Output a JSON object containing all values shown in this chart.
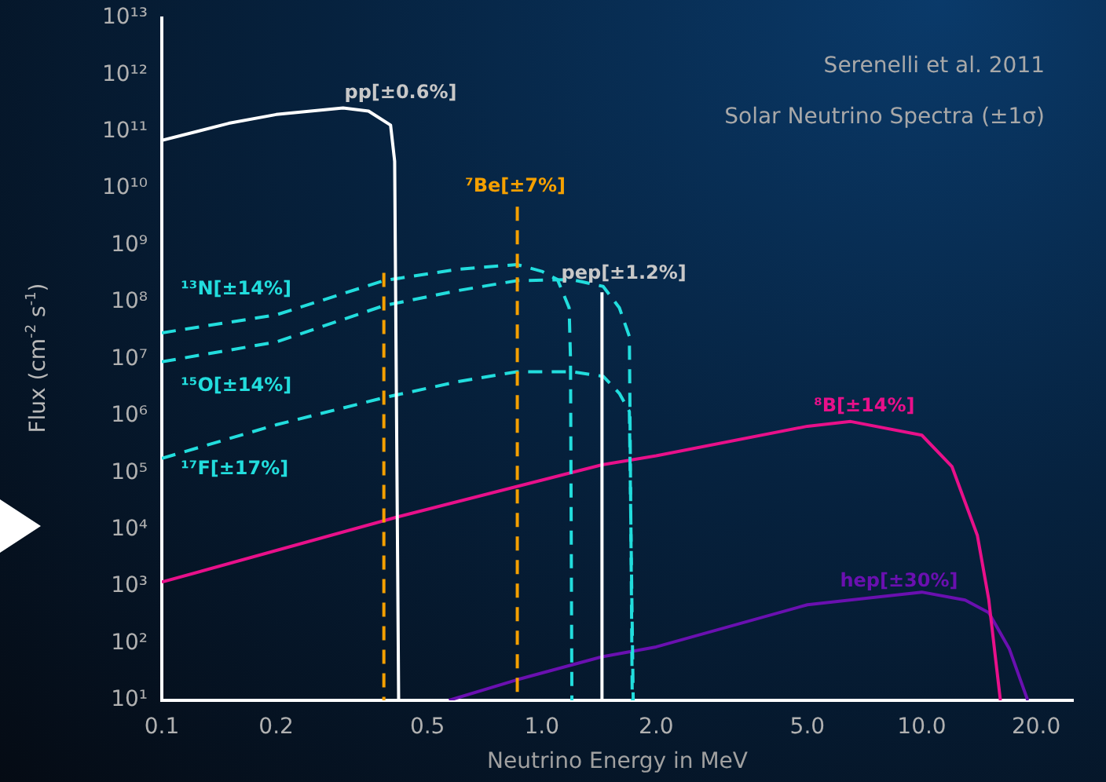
{
  "chart_data": {
    "type": "line",
    "title": "Serenelli et al. 2011",
    "subtitle": "Solar Neutrino Spectra (±1σ)",
    "xlabel": "Neutrino Energy in MeV",
    "ylabel": "Flux (cm$^{-2}$ s$^{-1}$)",
    "log": "xy",
    "grid": false,
    "legend": false,
    "marker": "none",
    "xlim": [
      0.1,
      25
    ],
    "xticks": [
      0.1,
      0.2,
      0.5,
      {
        "value": 1,
        "label": "1.0"
      },
      {
        "value": 2,
        "label": "2.0"
      },
      {
        "value": 5,
        "label": "5.0"
      },
      {
        "value": 10,
        "label": "10.0"
      },
      {
        "value": 20,
        "label": "20.0"
      }
    ],
    "ylim": [
      10,
      10000000000000.0
    ],
    "yticks": [
      {
        "value": 10,
        "label": "10¹"
      },
      {
        "value": 100,
        "label": "10²"
      },
      {
        "value": 1000,
        "label": "10³"
      },
      {
        "value": 10000,
        "label": "10⁴"
      },
      {
        "value": 100000,
        "label": "10⁵"
      },
      {
        "value": 1000000,
        "label": "10⁶"
      },
      {
        "value": 10000000,
        "label": "10⁷"
      },
      {
        "value": 100000000,
        "label": "10⁸"
      },
      {
        "value": 1000000000,
        "label": "10⁹"
      },
      {
        "value": 10000000000,
        "label": "10¹⁰"
      },
      {
        "value": 100000000000,
        "label": "10¹¹"
      },
      {
        "value": 1000000000000,
        "label": "10¹²"
      },
      {
        "value": 10000000000000,
        "label": "10¹³"
      }
    ],
    "series": [
      {
        "name": "pp[±0.6%]",
        "color": "#ffffff",
        "line_style": "solid",
        "x": [
          0.1,
          0.15,
          0.2,
          0.3,
          0.35,
          0.4,
          0.41,
          0.42
        ],
        "values": [
          70000000000.0,
          140000000000.0,
          200000000000.0,
          260000000000.0,
          230000000000.0,
          130000000000.0,
          30000000000.0,
          10
        ]
      },
      {
        "name": "pep[±1.2%]",
        "color": "#ffffff",
        "line_style": "solid",
        "x": [
          1.44,
          1.44
        ],
        "values": [
          10,
          150000000.0
        ]
      },
      {
        "name": "⁷Be[±7%]",
        "color": "#f5a000",
        "line_style": "dashed",
        "x": [
          0.862,
          0.862,
          0.6,
          0.384,
          0.384
        ],
        "values": [
          4800000000.0,
          10,
          null,
          330000000.0,
          10
        ]
      },
      {
        "name": "¹³N[±14%]",
        "color": "#22dddd",
        "line_style": "dashed",
        "x": [
          0.1,
          0.2,
          0.384,
          0.6,
          0.86,
          1.0,
          1.1,
          1.18,
          1.19,
          1.2
        ],
        "values": [
          29000000.0,
          60000000.0,
          240000000.0,
          380000000.0,
          460000000.0,
          350000000.0,
          250000000.0,
          80000000.0,
          10000000.0,
          10
        ]
      },
      {
        "name": "¹⁵O[±14%]",
        "color": "#22dddd",
        "line_style": "dashed",
        "x": [
          0.1,
          0.2,
          0.384,
          0.6,
          0.86,
          1.2,
          1.45,
          1.6,
          1.7,
          1.73
        ],
        "values": [
          9000000.0,
          20000000.0,
          87000000.0,
          160000000.0,
          240000000.0,
          250000000.0,
          190000000.0,
          80000000.0,
          25000000.0,
          10
        ]
      },
      {
        "name": "¹⁷F[±17%]",
        "color": "#22dddd",
        "line_style": "dashed",
        "x": [
          0.1,
          0.2,
          0.384,
          0.6,
          0.86,
          1.2,
          1.45,
          1.6,
          1.7,
          1.74
        ],
        "values": [
          180000.0,
          700000.0,
          2100000.0,
          4000000.0,
          6000000.0,
          6000000.0,
          5000000.0,
          2500000.0,
          1200000.0,
          10
        ]
      },
      {
        "name": "⁸B[±14%]",
        "color": "#e8108a",
        "line_style": "solid",
        "x": [
          0.1,
          0.42,
          1.45,
          2.0,
          5.0,
          6.5,
          10,
          12,
          14,
          15,
          16.1
        ],
        "values": [
          1200,
          17000,
          140000,
          200000,
          660000,
          800000,
          460000,
          130000,
          8000,
          600,
          10
        ]
      },
      {
        "name": "hep[±30%]",
        "color": "#6a10b0",
        "line_style": "solid",
        "x": [
          0.57,
          0.86,
          1.45,
          2.0,
          5.0,
          10,
          13,
          15,
          17,
          19
        ],
        "values": [
          10,
          23,
          59,
          87,
          480,
          800,
          580,
          350,
          80,
          10
        ]
      }
    ]
  }
}
